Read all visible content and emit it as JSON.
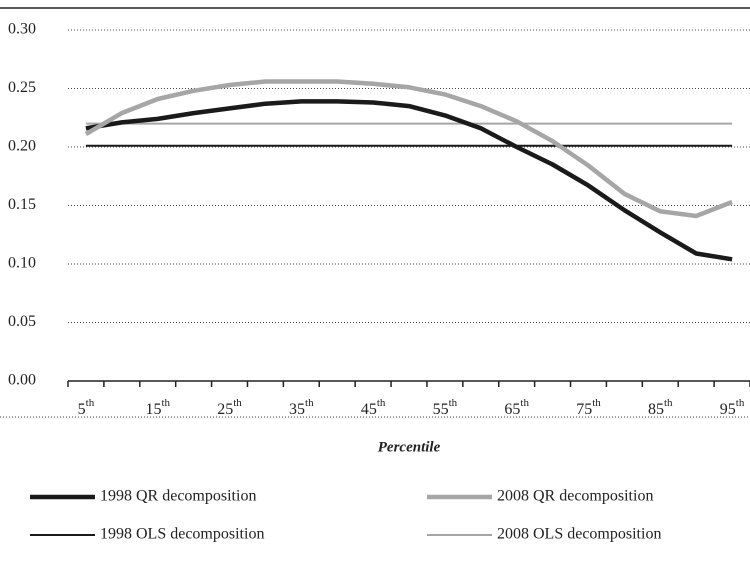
{
  "chart_data": {
    "type": "line",
    "x_label": "Percentile",
    "categories": [
      "5th",
      null,
      "15th",
      null,
      "25th",
      null,
      "35th",
      null,
      "45th",
      null,
      "55th",
      null,
      "65th",
      null,
      "75th",
      null,
      "85th",
      null,
      "95th"
    ],
    "series": [
      {
        "name": "1998 QR decomposition",
        "color": "#1a1a1a",
        "values": [
          0.216,
          0.221,
          0.224,
          0.229,
          0.233,
          0.237,
          0.239,
          0.239,
          0.238,
          0.235,
          0.227,
          0.216,
          0.2,
          0.185,
          0.167,
          0.146,
          0.127,
          0.109,
          0.104
        ]
      },
      {
        "name": "2008 QR decomposition",
        "color": "#a6a6a6",
        "values": [
          0.211,
          0.229,
          0.241,
          0.248,
          0.253,
          0.256,
          0.256,
          0.256,
          0.254,
          0.251,
          0.245,
          0.235,
          0.222,
          0.205,
          0.184,
          0.16,
          0.145,
          0.141,
          0.153
        ]
      },
      {
        "name": "1998 OLS decomposition",
        "color": "#1a1a1a",
        "values": [
          0.201,
          0.201,
          0.201,
          0.201,
          0.201,
          0.201,
          0.201,
          0.201,
          0.201,
          0.201,
          0.201,
          0.201,
          0.201,
          0.201,
          0.201,
          0.201,
          0.201,
          0.201,
          0.201
        ]
      },
      {
        "name": "2008 OLS decomposition",
        "color": "#a6a6a6",
        "values": [
          0.22,
          0.22,
          0.22,
          0.22,
          0.22,
          0.22,
          0.22,
          0.22,
          0.22,
          0.22,
          0.22,
          0.22,
          0.22,
          0.22,
          0.22,
          0.22,
          0.22,
          0.22,
          0.22
        ]
      }
    ],
    "ylim": [
      0,
      0.3
    ],
    "yticks": [
      {
        "value": 0,
        "label": "0.00"
      },
      0.05,
      {
        "value": 0.1,
        "label": "0.10"
      },
      0.15,
      {
        "value": 0.2,
        "label": "0.20"
      },
      0.25,
      {
        "value": 0.3,
        "label": "0.30"
      }
    ],
    "grid": true
  }
}
